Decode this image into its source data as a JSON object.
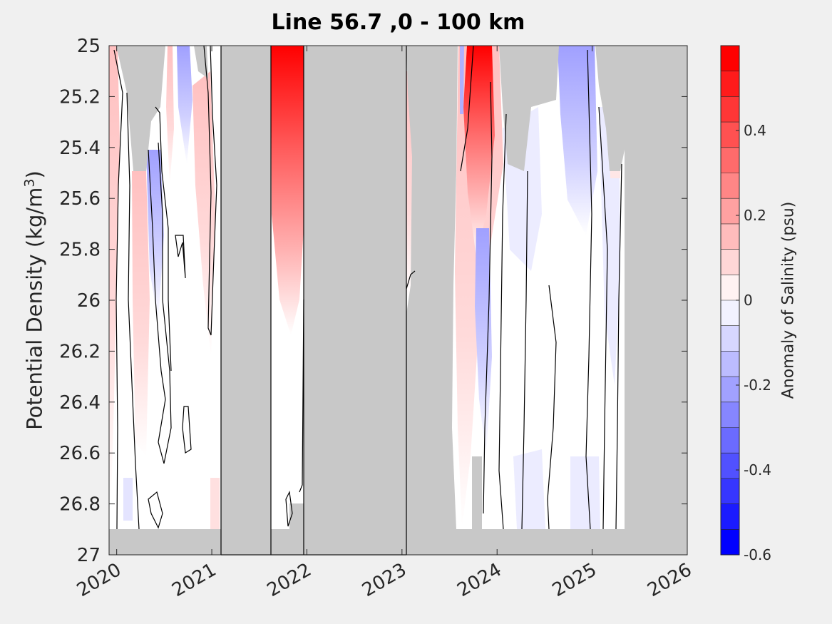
{
  "chart_data": {
    "type": "heatmap",
    "title": "Line 56.7 ,0 - 100 km",
    "ylabel_main": "Potential Density (kg/m",
    "ylabel_sup": "3",
    "ylabel_tail": ")",
    "colorbar_label": "Anomaly of Salinity (psu)",
    "x_ticks": [
      "2020",
      "2021",
      "2022",
      "2023",
      "2024",
      "2025",
      "2026"
    ],
    "x_tick_values": [
      2020,
      2021,
      2022,
      2023,
      2024,
      2025,
      2026
    ],
    "xlim": [
      2019.92,
      2026
    ],
    "y_ticks": [
      "25",
      "25.2",
      "25.4",
      "25.6",
      "25.8",
      "26",
      "26.2",
      "26.4",
      "26.6",
      "26.8",
      "27"
    ],
    "y_tick_values": [
      25,
      25.2,
      25.4,
      25.6,
      25.8,
      26,
      26.2,
      26.4,
      26.6,
      26.8,
      27
    ],
    "ylim": [
      25,
      27
    ],
    "y_reversed": true,
    "clim": [
      -0.6,
      0.6
    ],
    "colorbar_ticks": [
      "0.4",
      "0.2",
      "0",
      "-0.2",
      "-0.4",
      "-0.6"
    ],
    "colorbar_tick_values": [
      0.4,
      0.2,
      0,
      -0.2,
      -0.4,
      -0.6
    ],
    "colormap": "blue-white-red (20 levels)",
    "colors": {
      "positive": "#ff0000",
      "negative": "#0000ff",
      "zero": "#ffffff",
      "no_data": "#c8c8c8"
    },
    "no_data_periods": [
      [
        2021.1,
        2021.63
      ],
      [
        2021.96,
        2023.04
      ],
      [
        2023.04,
        2023.6
      ]
    ],
    "surveys": [
      {
        "time": 2020.1,
        "max_anomaly": 0.2
      },
      {
        "time": 2020.3,
        "max_anomaly": 0.15
      },
      {
        "time": 2020.45,
        "max_anomaly": -0.2
      },
      {
        "time": 2020.8,
        "max_anomaly": 0.15
      },
      {
        "time": 2021.75,
        "max_anomaly": 0.6
      },
      {
        "time": 2023.05,
        "max_anomaly": 0.2
      },
      {
        "time": 2023.75,
        "max_anomaly": 0.6
      },
      {
        "time": 2023.85,
        "max_anomaly": -0.2
      },
      {
        "time": 2024.75,
        "max_anomaly": -0.25
      }
    ]
  }
}
